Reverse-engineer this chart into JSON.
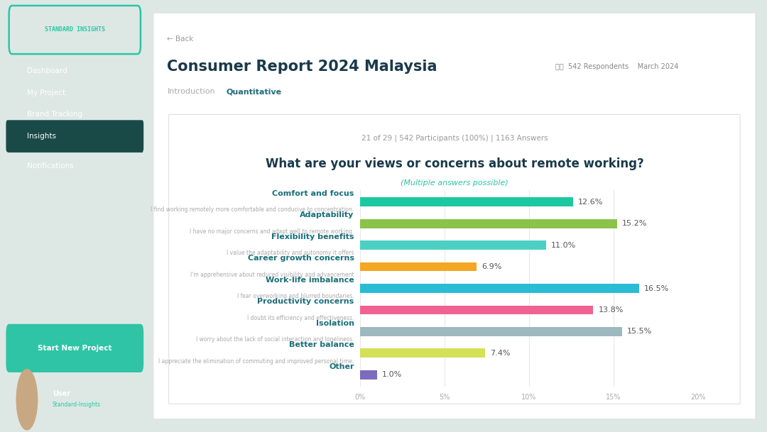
{
  "title": "What are your views or concerns about remote working?",
  "subtitle": "(Multiple answers possible)",
  "supertitle": "21 of 29 | 542 Participants (100%) | 1163 Answers",
  "categories": [
    "Comfort and focus",
    "Adaptability",
    "Flexibility benefits",
    "Career growth concerns",
    "Work-life imbalance",
    "Productivity concerns",
    "Isolation",
    "Better balance",
    "Other"
  ],
  "subcategories": [
    "I find working remotely more comfortable and conducive to concentration.",
    "I have no major concerns and adapt well to remote working.",
    "I value the adaptability and autonomy it offers",
    "I'm apprehensive about reduced visibility and advancement",
    "I fear overworking and blurred boundaries.",
    "I doubt its efficiency and effectiveness.",
    "I worry about the lack of social interaction and loneliness.",
    "I appreciate the elimination of commuting and improved personal time.",
    ""
  ],
  "values": [
    12.6,
    15.2,
    11.0,
    6.9,
    16.5,
    13.8,
    15.5,
    7.4,
    1.0
  ],
  "bar_colors": [
    "#1dc8a0",
    "#8bc34a",
    "#4dd0c4",
    "#f5a623",
    "#29bcd4",
    "#f06292",
    "#9eb8c0",
    "#d4e157",
    "#7c6bbf"
  ],
  "label_color": "#1a6e7a",
  "sublabel_color": "#aaaaaa",
  "title_color": "#1a3a4a",
  "subtitle_color": "#2ec4a5",
  "supertitle_color": "#999999",
  "value_color": "#555555",
  "bg_color": "#ffffff",
  "outer_bg_color": "#dde8e4",
  "sidebar_color": "#0d3d3a",
  "sidebar_highlight": "#2ec4a5",
  "xlim": [
    0,
    20
  ],
  "bar_height": 0.42,
  "figsize": [
    10.8,
    6.09
  ],
  "dpi": 100
}
